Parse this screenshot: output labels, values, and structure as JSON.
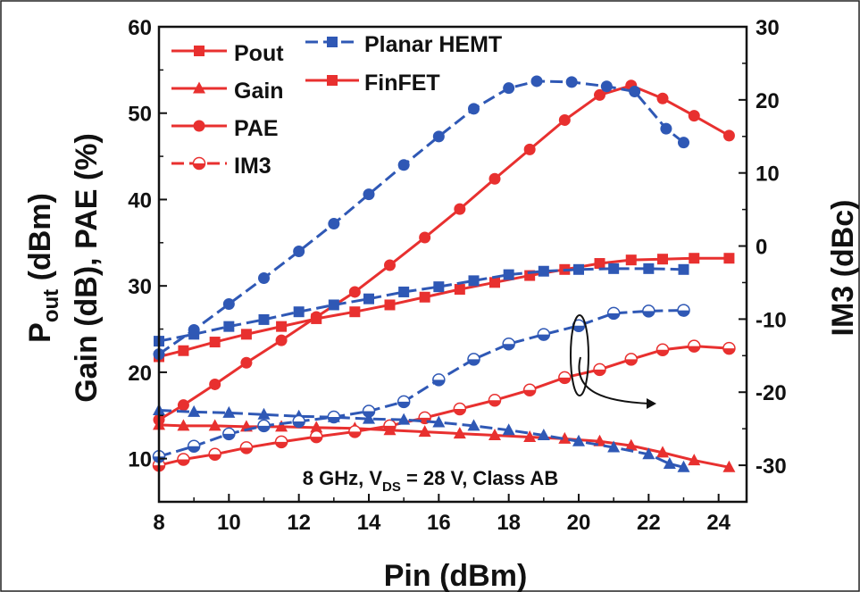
{
  "chart_data": {
    "type": "line",
    "xlabel_main": "Pin",
    "xlabel_unit": "(dBm)",
    "ylabel_left_line1_main": "P",
    "ylabel_left_line1_sub": "out",
    "ylabel_left_line1_rest": " (dBm)",
    "ylabel_left_line2": "Gain (dB), PAE (%)",
    "ylabel_right": "IM3 (dBc)",
    "xlim": [
      8,
      24.8
    ],
    "ylim_left": [
      5,
      60
    ],
    "ylim_right": [
      -35,
      30
    ],
    "x_ticks": [
      8,
      10,
      12,
      14,
      16,
      18,
      20,
      22,
      24
    ],
    "y_left_ticks": [
      10,
      20,
      30,
      40,
      50,
      60
    ],
    "y_right_ticks": [
      -30,
      -20,
      -10,
      0,
      10,
      20,
      30
    ],
    "annotation": {
      "line1_a": "8 GHz, V",
      "line1_sub": "DS",
      "line1_b": " = 28 V, Class AB"
    },
    "legend_markers": [
      {
        "label": "Pout",
        "marker": "square"
      },
      {
        "label": "Gain",
        "marker": "triangle"
      },
      {
        "label": "PAE",
        "marker": "circle"
      },
      {
        "label": "IM3",
        "marker": "halfcircle"
      }
    ],
    "legend_devices": [
      {
        "label": "Planar HEMT",
        "color": "#2f58b5",
        "dashed": true
      },
      {
        "label": "FinFET",
        "color": "#e8302f",
        "dashed": false
      }
    ],
    "series": [
      {
        "name": "Planar HEMT Pout",
        "device": "Planar HEMT",
        "metric": "Pout",
        "axis": "left",
        "marker": "square",
        "x": [
          8,
          9,
          10,
          11,
          12,
          13,
          14,
          15,
          16,
          17,
          18,
          19,
          20,
          21,
          22,
          23
        ],
        "y": [
          23.6,
          24.4,
          25.3,
          26.1,
          27.0,
          27.8,
          28.5,
          29.3,
          29.9,
          30.6,
          31.3,
          31.7,
          31.9,
          32.0,
          32.0,
          31.9
        ]
      },
      {
        "name": "FinFET Pout",
        "device": "FinFET",
        "metric": "Pout",
        "axis": "left",
        "marker": "square",
        "x": [
          8,
          8.7,
          9.6,
          10.5,
          11.5,
          12.5,
          13.6,
          14.6,
          15.6,
          16.6,
          17.6,
          18.6,
          19.6,
          20.6,
          21.5,
          22.4,
          23.3,
          24.3
        ],
        "y": [
          21.8,
          22.5,
          23.5,
          24.4,
          25.3,
          26.2,
          27.0,
          27.8,
          28.7,
          29.6,
          30.4,
          31.2,
          31.9,
          32.6,
          33.0,
          33.1,
          33.2,
          33.2
        ]
      },
      {
        "name": "Planar HEMT Gain",
        "device": "Planar HEMT",
        "metric": "Gain",
        "axis": "left",
        "marker": "triangle",
        "x": [
          8,
          9,
          10,
          11,
          12,
          13,
          14,
          15,
          16,
          17,
          18,
          19,
          20,
          21,
          22,
          22.6,
          23
        ],
        "y": [
          15.6,
          15.4,
          15.3,
          15.1,
          14.9,
          14.8,
          14.6,
          14.5,
          14.2,
          13.8,
          13.3,
          12.7,
          12.0,
          11.3,
          10.5,
          9.4,
          9.0
        ]
      },
      {
        "name": "FinFET Gain",
        "device": "FinFET",
        "metric": "Gain",
        "axis": "left",
        "marker": "triangle",
        "x": [
          8,
          8.7,
          9.6,
          10.5,
          11.5,
          12.5,
          13.6,
          14.6,
          15.6,
          16.6,
          17.6,
          18.6,
          19.6,
          20.6,
          21.5,
          22.4,
          23.3,
          24.3
        ],
        "y": [
          13.9,
          13.8,
          13.8,
          13.7,
          13.7,
          13.6,
          13.5,
          13.3,
          13.1,
          12.9,
          12.7,
          12.5,
          12.3,
          12.0,
          11.5,
          10.7,
          9.8,
          9.0
        ]
      },
      {
        "name": "Planar HEMT PAE",
        "device": "Planar HEMT",
        "metric": "PAE",
        "axis": "left",
        "marker": "circle",
        "x": [
          8,
          9,
          10,
          11,
          12,
          13,
          14,
          15,
          16,
          17,
          18,
          18.8,
          19.8,
          20.8,
          21.6,
          22.5,
          23
        ],
        "y": [
          22.1,
          24.9,
          27.9,
          30.9,
          34.0,
          37.2,
          40.6,
          44.0,
          47.3,
          50.5,
          52.9,
          53.7,
          53.6,
          53.1,
          52.5,
          48.2,
          46.6
        ]
      },
      {
        "name": "FinFET PAE",
        "device": "FinFET",
        "metric": "PAE",
        "axis": "left",
        "marker": "circle",
        "x": [
          8,
          8.7,
          9.6,
          10.5,
          11.5,
          12.5,
          13.6,
          14.6,
          15.6,
          16.6,
          17.6,
          18.6,
          19.6,
          20.6,
          21.5,
          22.4,
          23.3,
          24.3
        ],
        "y": [
          14.5,
          16.2,
          18.6,
          21.1,
          23.7,
          26.4,
          29.3,
          32.4,
          35.6,
          38.9,
          42.4,
          45.8,
          49.2,
          52.1,
          53.2,
          51.7,
          49.7,
          47.4
        ]
      },
      {
        "name": "Planar HEMT IM3",
        "device": "Planar HEMT",
        "metric": "IM3",
        "axis": "right",
        "marker": "halfcircle",
        "x": [
          8,
          9,
          10,
          11,
          12,
          13,
          14,
          15,
          16,
          17,
          18,
          19,
          20,
          21,
          22,
          23
        ],
        "y": [
          -28.8,
          -27.4,
          -25.7,
          -24.6,
          -24.0,
          -23.4,
          -22.6,
          -21.3,
          -18.3,
          -15.5,
          -13.4,
          -12.1,
          -10.9,
          -9.2,
          -8.9,
          -8.8
        ]
      },
      {
        "name": "FinFET IM3",
        "device": "FinFET",
        "metric": "IM3",
        "axis": "right",
        "marker": "halfcircle",
        "x": [
          8,
          8.7,
          9.6,
          10.5,
          11.5,
          12.5,
          13.6,
          14.6,
          15.6,
          16.6,
          17.6,
          18.6,
          19.6,
          20.6,
          21.5,
          22.4,
          23.3,
          24.3
        ],
        "y": [
          -30.0,
          -29.2,
          -28.5,
          -27.6,
          -26.8,
          -26.1,
          -25.4,
          -24.6,
          -23.5,
          -22.3,
          -21.1,
          -19.7,
          -18.0,
          -16.9,
          -15.5,
          -14.2,
          -13.7,
          -14.0
        ]
      }
    ]
  }
}
